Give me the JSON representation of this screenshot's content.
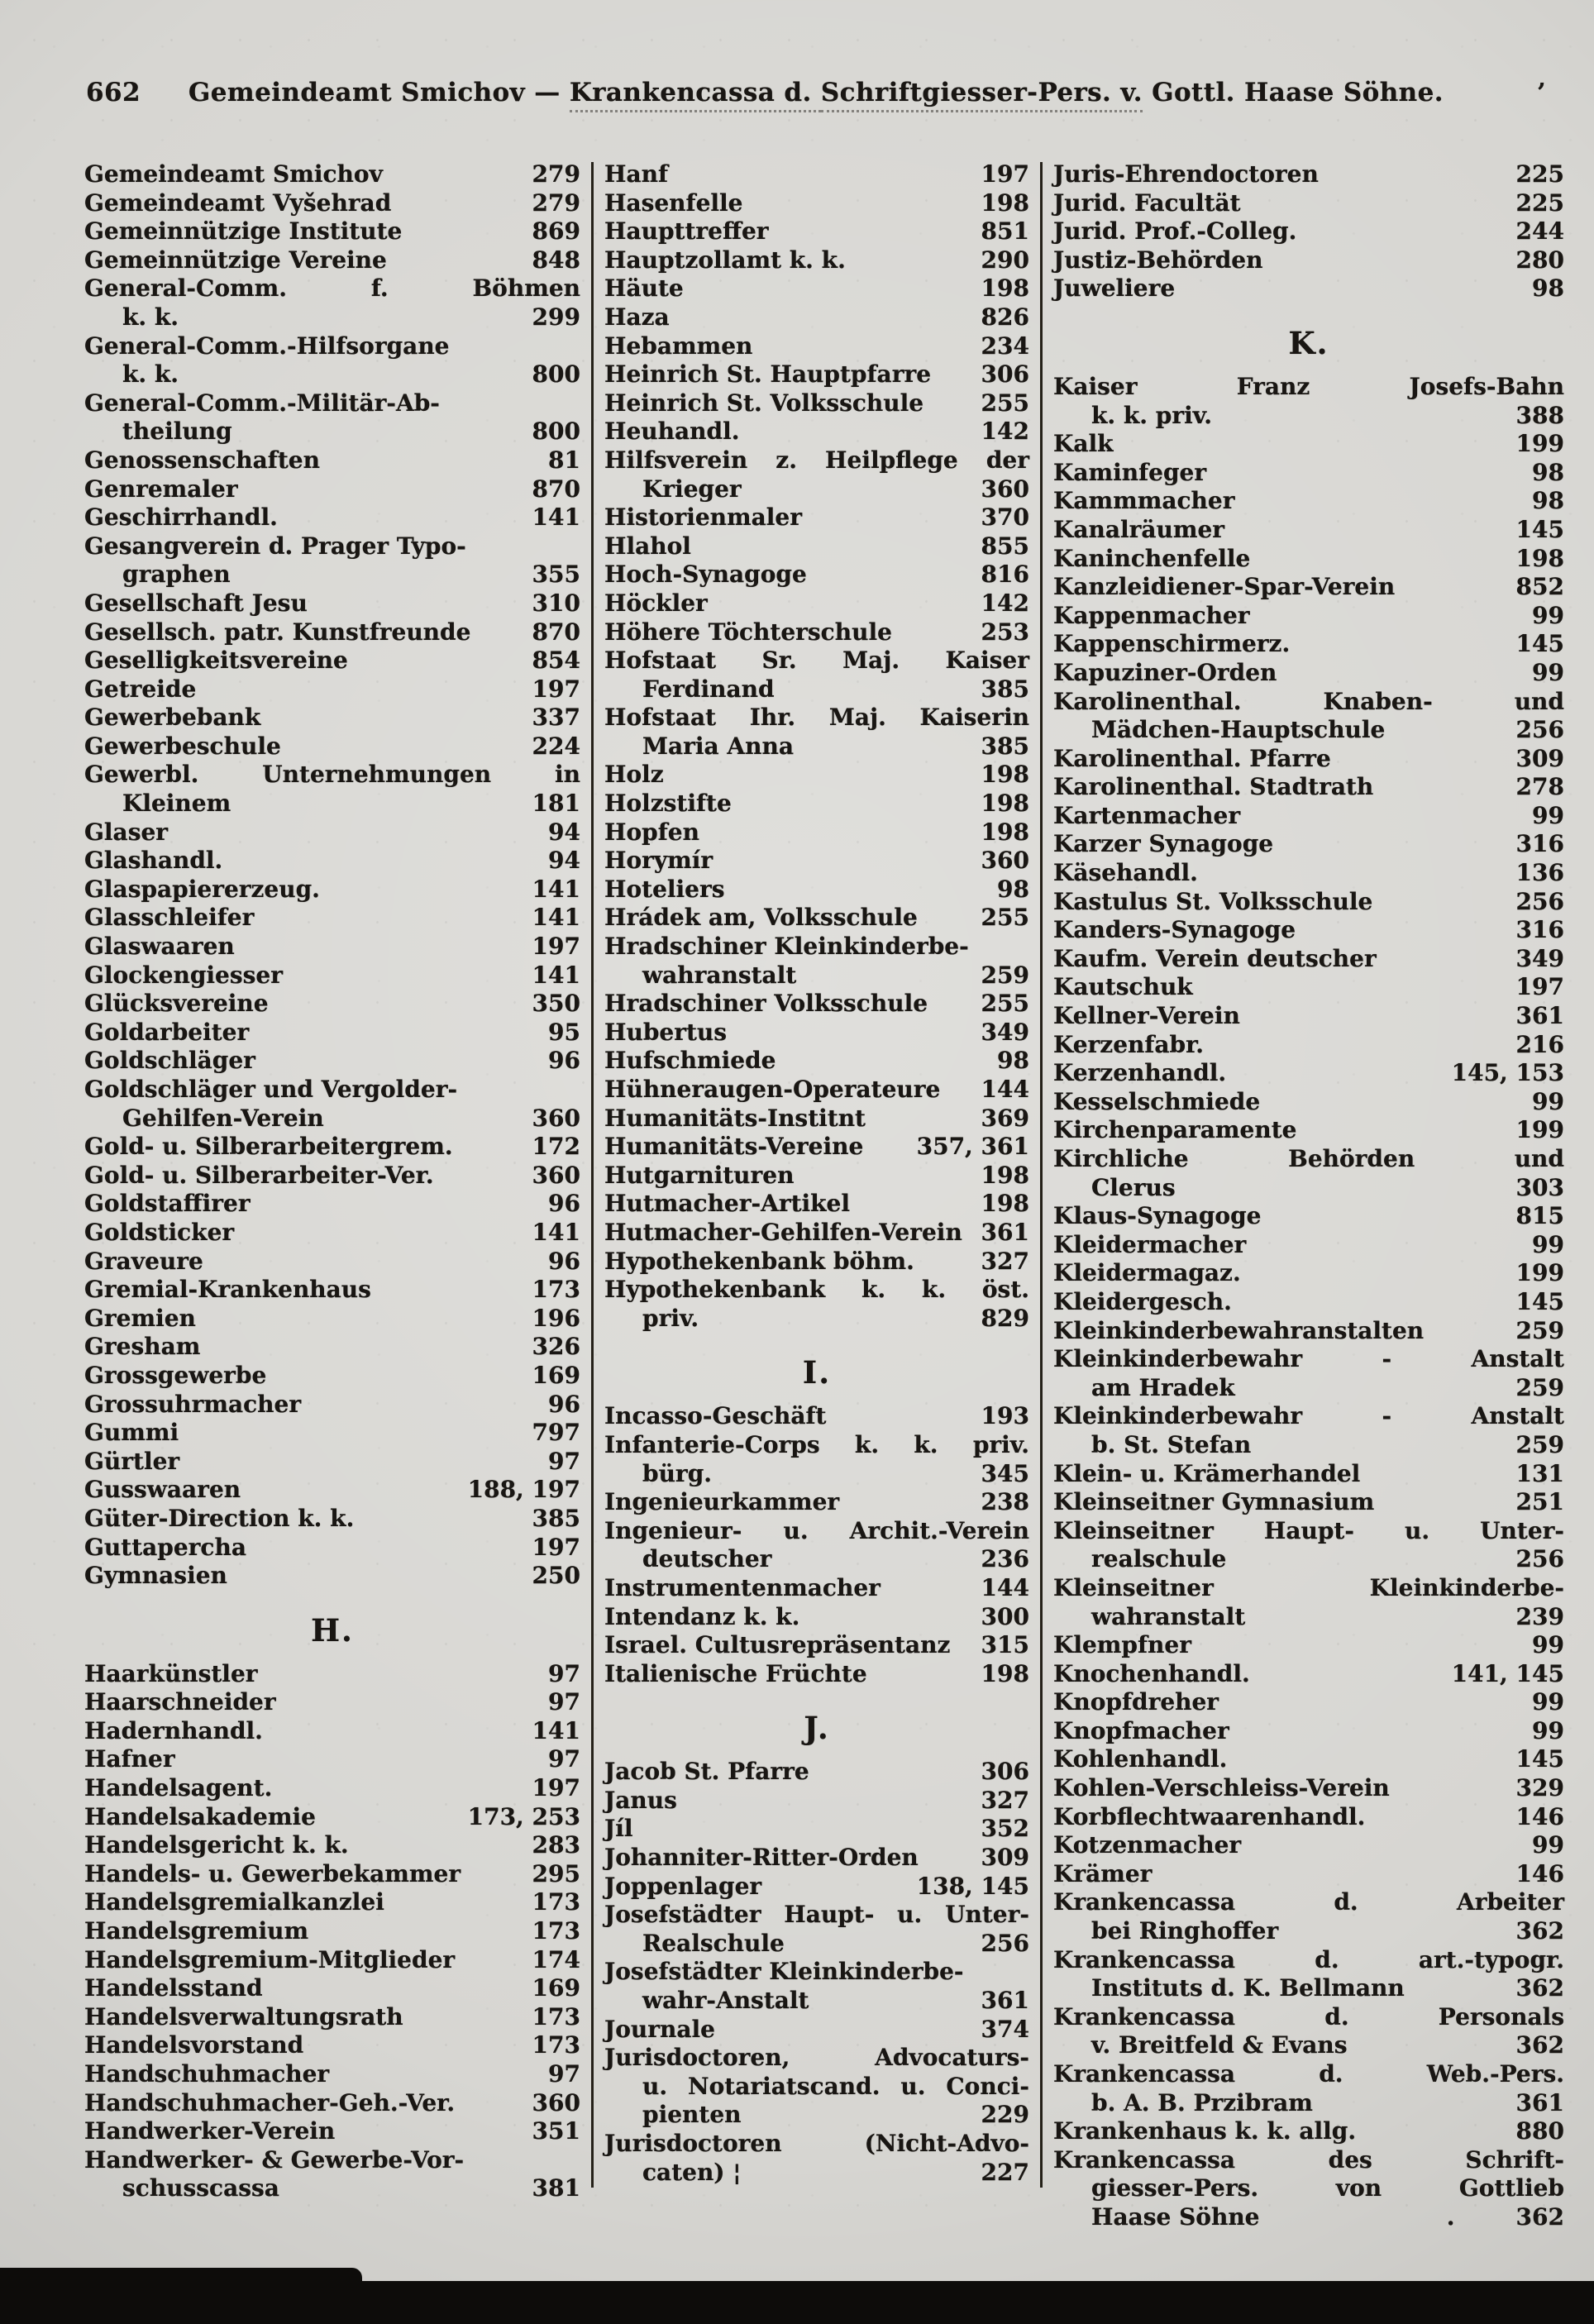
{
  "header": {
    "page_number": "662",
    "part1": "Gemeindeamt Smichov — ",
    "part2": "Krankencassa d. ",
    "part3": "Schriftgiesser-Pers. v.",
    "part4": " Gottl. Haase Söhne.",
    "right_mark": "’"
  },
  "columns": [
    {
      "rows": [
        {
          "l": "Gemeindeamt Smichov",
          "n": "279"
        },
        {
          "l": "Gemeindeamt Vyšehrad",
          "n": "279"
        },
        {
          "l": "Gemeinnützige Institute",
          "n": "869"
        },
        {
          "l": "Gemeinnützige Vereine",
          "n": "848"
        },
        {
          "l": "General-Comm. f. Böhmen",
          "j": 1
        },
        {
          "l": "k. k.",
          "n": "299",
          "i": 1
        },
        {
          "l": "General-Comm.-Hilfsorgane"
        },
        {
          "l": "k. k.",
          "n": "800",
          "i": 1
        },
        {
          "l": "General-Comm.-Militär-Ab-"
        },
        {
          "l": "theilung",
          "n": "800",
          "i": 1
        },
        {
          "l": "Genossenschaften",
          "n": "81"
        },
        {
          "l": "Genremaler",
          "n": "870"
        },
        {
          "l": "Geschirrhandl.",
          "n": "141"
        },
        {
          "l": "Gesangverein d. Prager Typo-"
        },
        {
          "l": "graphen",
          "n": "355",
          "i": 1
        },
        {
          "l": "Gesellschaft Jesu",
          "n": "310"
        },
        {
          "l": "Gesellsch. patr. Kunstfreunde",
          "n": "870"
        },
        {
          "l": "Geselligkeitsvereine",
          "n": "854"
        },
        {
          "l": "Getreide",
          "n": "197"
        },
        {
          "l": "Gewerbebank",
          "n": "337"
        },
        {
          "l": "Gewerbeschule",
          "n": "224"
        },
        {
          "l": "Gewerbl. Unternehmungen in",
          "j": 1
        },
        {
          "l": "Kleinem",
          "n": "181",
          "i": 1
        },
        {
          "l": "Glaser",
          "n": "94"
        },
        {
          "l": "Glashandl.",
          "n": "94"
        },
        {
          "l": "Glaspapiererzeug.",
          "n": "141"
        },
        {
          "l": "Glasschleifer",
          "n": "141"
        },
        {
          "l": "Glaswaaren",
          "n": "197"
        },
        {
          "l": "Glockengiesser",
          "n": "141"
        },
        {
          "l": "Glücksvereine",
          "n": "350"
        },
        {
          "l": "Goldarbeiter",
          "n": "95"
        },
        {
          "l": "Goldschläger",
          "n": "96"
        },
        {
          "l": "Goldschläger und Vergolder-"
        },
        {
          "l": "Gehilfen-Verein",
          "n": "360",
          "i": 1
        },
        {
          "l": "Gold- u. Silberarbeitergrem.",
          "n": "172"
        },
        {
          "l": "Gold- u. Silberarbeiter-Ver.",
          "n": "360"
        },
        {
          "l": "Goldstaffirer",
          "n": "96"
        },
        {
          "l": "Goldsticker",
          "n": "141"
        },
        {
          "l": "Graveure",
          "n": "96"
        },
        {
          "l": "Gremial-Krankenhaus",
          "n": "173"
        },
        {
          "l": "Gremien",
          "n": "196"
        },
        {
          "l": "Gresham",
          "n": "326"
        },
        {
          "l": "Grossgewerbe",
          "n": "169"
        },
        {
          "l": "Grossuhrmacher",
          "n": "96"
        },
        {
          "l": "Gummi",
          "n": "797"
        },
        {
          "l": "Gürtler",
          "n": "97"
        },
        {
          "l": "Gusswaaren",
          "n": "188, 197"
        },
        {
          "l": "Güter-Direction k. k.",
          "n": "385"
        },
        {
          "l": "Guttapercha",
          "n": "197"
        },
        {
          "l": "Gymnasien",
          "n": "250"
        },
        {
          "h": "H."
        },
        {
          "l": "Haarkünstler",
          "n": "97"
        },
        {
          "l": "Haarschneider",
          "n": "97"
        },
        {
          "l": "Hadernhandl.",
          "n": "141"
        },
        {
          "l": "Hafner",
          "n": "97"
        },
        {
          "l": "Handelsagent.",
          "n": "197"
        },
        {
          "l": "Handelsakademie",
          "n": "173, 253"
        },
        {
          "l": "Handelsgericht k. k.",
          "n": "283"
        },
        {
          "l": "Handels- u. Gewerbekammer",
          "n": "295"
        },
        {
          "l": "Handelsgremialkanzlei",
          "n": "173"
        },
        {
          "l": "Handelsgremium",
          "n": "173"
        },
        {
          "l": "Handelsgremium-Mitglieder",
          "n": "174"
        },
        {
          "l": "Handelsstand",
          "n": "169"
        },
        {
          "l": "Handelsverwaltungsrath",
          "n": "173"
        },
        {
          "l": "Handelsvorstand",
          "n": "173"
        },
        {
          "l": "Handschuhmacher",
          "n": "97"
        },
        {
          "l": "Handschuhmacher-Geh.-Ver.",
          "n": "360"
        },
        {
          "l": "Handwerker-Verein",
          "n": "351"
        },
        {
          "l": "Handwerker- & Gewerbe-Vor-"
        },
        {
          "l": "schusscassa",
          "n": "381",
          "i": 1
        }
      ]
    },
    {
      "rows": [
        {
          "l": "Hanf",
          "n": "197"
        },
        {
          "l": "Hasenfelle",
          "n": "198"
        },
        {
          "l": "Haupttreffer",
          "n": "851"
        },
        {
          "l": "Hauptzollamt k. k.",
          "n": "290"
        },
        {
          "l": "Häute",
          "n": "198"
        },
        {
          "l": "Haza",
          "n": "826"
        },
        {
          "l": "Hebammen",
          "n": "234"
        },
        {
          "l": "Heinrich St. Hauptpfarre",
          "n": "306"
        },
        {
          "l": "Heinrich St. Volksschule",
          "n": "255"
        },
        {
          "l": "Heuhandl.",
          "n": "142"
        },
        {
          "l": "Hilfsverein z. Heilpflege der",
          "j": 1
        },
        {
          "l": "Krieger",
          "n": "360",
          "i": 1
        },
        {
          "l": "Historienmaler",
          "n": "370"
        },
        {
          "l": "Hlahol",
          "n": "855"
        },
        {
          "l": "Hoch-Synagoge",
          "n": "816"
        },
        {
          "l": "Höckler",
          "n": "142"
        },
        {
          "l": "Höhere Töchterschule",
          "n": "253"
        },
        {
          "l": "Hofstaat Sr. Maj. Kaiser",
          "j": 1
        },
        {
          "l": "Ferdinand",
          "n": "385",
          "i": 1
        },
        {
          "l": "Hofstaat Ihr. Maj. Kaiserin",
          "j": 1
        },
        {
          "l": "Maria Anna",
          "n": "385",
          "i": 1
        },
        {
          "l": "Holz",
          "n": "198"
        },
        {
          "l": "Holzstifte",
          "n": "198"
        },
        {
          "l": "Hopfen",
          "n": "198"
        },
        {
          "l": "Horymír",
          "n": "360"
        },
        {
          "l": "Hoteliers",
          "n": "98"
        },
        {
          "l": "Hrádek am, Volksschule",
          "n": "255"
        },
        {
          "l": "Hradschiner Kleinkinderbe-"
        },
        {
          "l": "wahranstalt",
          "n": "259",
          "i": 1
        },
        {
          "l": "Hradschiner Volksschule",
          "n": "255"
        },
        {
          "l": "Hubertus",
          "n": "349"
        },
        {
          "l": "Hufschmiede",
          "n": "98"
        },
        {
          "l": "Hühneraugen-Operateure",
          "n": "144"
        },
        {
          "l": "Humanitäts-Institnt",
          "n": "369"
        },
        {
          "l": "Humanitäts-Vereine",
          "n": "357, 361"
        },
        {
          "l": "Hutgarnituren",
          "n": "198"
        },
        {
          "l": "Hutmacher-Artikel",
          "n": "198"
        },
        {
          "l": "Hutmacher-Gehilfen-Verein",
          "n": "361"
        },
        {
          "l": "Hypothekenbank böhm.",
          "n": "327"
        },
        {
          "l": "Hypothekenbank k. k. öst.",
          "j": 1
        },
        {
          "l": "priv.",
          "n": "829",
          "i": 1
        },
        {
          "h": "I."
        },
        {
          "l": "Incasso-Geschäft",
          "n": "193"
        },
        {
          "l": "Infanterie-Corps k. k. priv.",
          "j": 1
        },
        {
          "l": "bürg.",
          "n": "345",
          "i": 1
        },
        {
          "l": "Ingenieurkammer",
          "n": "238"
        },
        {
          "l": "Ingenieur- u. Archit.-Verein",
          "j": 1
        },
        {
          "l": "deutscher",
          "n": "236",
          "i": 1
        },
        {
          "l": "Instrumentenmacher",
          "n": "144"
        },
        {
          "l": "Intendanz k. k.",
          "n": "300"
        },
        {
          "l": "Israel. Cultusrepräsentanz",
          "n": "315"
        },
        {
          "l": "Italienische Früchte",
          "n": "198"
        },
        {
          "h": "J."
        },
        {
          "l": "Jacob St. Pfarre",
          "n": "306"
        },
        {
          "l": "Janus",
          "n": "327"
        },
        {
          "l": "Jíl",
          "n": "352"
        },
        {
          "l": "Johanniter-Ritter-Orden",
          "n": "309"
        },
        {
          "l": "Joppenlager",
          "n": "138, 145"
        },
        {
          "l": "Josefstädter Haupt- u. Unter-",
          "j": 1
        },
        {
          "l": "Realschule",
          "n": "256",
          "i": 1
        },
        {
          "l": "Josefstädter Kleinkinderbe-"
        },
        {
          "l": "wahr-Anstalt",
          "n": "361",
          "i": 1
        },
        {
          "l": "Journale",
          "n": "374"
        },
        {
          "l": "Jurisdoctoren, Advocaturs-",
          "j": 1
        },
        {
          "l": "u. Notariatscand. u. Conci-",
          "i": 1,
          "j": 1
        },
        {
          "l": "pienten",
          "n": "229",
          "i": 1
        },
        {
          "l": "Jurisdoctoren (Nicht-Advo-",
          "j": 1
        },
        {
          "l": "caten) ¦",
          "n": "227",
          "i": 1
        }
      ]
    },
    {
      "rows": [
        {
          "l": "Juris-Ehrendoctoren",
          "n": "225"
        },
        {
          "l": "Jurid. Facultät",
          "n": "225"
        },
        {
          "l": "Jurid. Prof.-Colleg.",
          "n": "244"
        },
        {
          "l": "Justiz-Behörden",
          "n": "280"
        },
        {
          "l": "Juweliere",
          "n": "98"
        },
        {
          "h": "K."
        },
        {
          "l": "Kaiser Franz Josefs-Bahn",
          "j": 1
        },
        {
          "l": "k. k. priv.",
          "n": "388",
          "i": 1
        },
        {
          "l": "Kalk",
          "n": "199"
        },
        {
          "l": "Kaminfeger",
          "n": "98"
        },
        {
          "l": "Kammmacher",
          "n": "98"
        },
        {
          "l": "Kanalräumer",
          "n": "145"
        },
        {
          "l": "Kaninchenfelle",
          "n": "198"
        },
        {
          "l": "Kanzleidiener-Spar-Verein",
          "n": "852"
        },
        {
          "l": "Kappenmacher",
          "n": "99"
        },
        {
          "l": "Kappenschirmerz.",
          "n": "145"
        },
        {
          "l": "Kapuziner-Orden",
          "n": "99"
        },
        {
          "l": "Karolinenthal. Knaben- und",
          "j": 1
        },
        {
          "l": "Mädchen-Hauptschule",
          "n": "256",
          "i": 1
        },
        {
          "l": "Karolinenthal. Pfarre",
          "n": "309"
        },
        {
          "l": "Karolinenthal. Stadtrath",
          "n": "278"
        },
        {
          "l": "Kartenmacher",
          "n": "99"
        },
        {
          "l": "Karzer Synagoge",
          "n": "316"
        },
        {
          "l": "Käsehandl.",
          "n": "136"
        },
        {
          "l": "Kastulus St. Volksschule",
          "n": "256"
        },
        {
          "l": "Kanders-Synagoge",
          "n": "316"
        },
        {
          "l": "Kaufm. Verein deutscher",
          "n": "349"
        },
        {
          "l": "Kautschuk",
          "n": "197"
        },
        {
          "l": "Kellner-Verein",
          "n": "361"
        },
        {
          "l": "Kerzenfabr.",
          "n": "216"
        },
        {
          "l": "Kerzenhandl.",
          "n": "145, 153"
        },
        {
          "l": "Kesselschmiede",
          "n": "99"
        },
        {
          "l": "Kirchenparamente",
          "n": "199"
        },
        {
          "l": "Kirchliche Behörden und",
          "j": 1
        },
        {
          "l": "Clerus",
          "n": "303",
          "i": 1
        },
        {
          "l": "Klaus-Synagoge",
          "n": "815"
        },
        {
          "l": "Kleidermacher",
          "n": "99"
        },
        {
          "l": "Kleidermagaz.",
          "n": "199"
        },
        {
          "l": "Kleidergesch.",
          "n": "145"
        },
        {
          "l": "Kleinkinderbewahranstalten",
          "n": "259"
        },
        {
          "l": "Kleinkinderbewahr - Anstalt",
          "j": 1
        },
        {
          "l": "am Hradek",
          "n": "259",
          "i": 1
        },
        {
          "l": "Kleinkinderbewahr - Anstalt",
          "j": 1
        },
        {
          "l": "b. St. Stefan",
          "n": "259",
          "i": 1
        },
        {
          "l": "Klein- u. Krämerhandel",
          "n": "131"
        },
        {
          "l": "Kleinseitner Gymnasium",
          "n": "251"
        },
        {
          "l": "Kleinseitner Haupt- u. Unter-",
          "j": 1
        },
        {
          "l": "realschule",
          "n": "256",
          "i": 1
        },
        {
          "l": "Kleinseitner Kleinkinderbe-",
          "j": 1
        },
        {
          "l": "wahranstalt",
          "n": "239",
          "i": 1
        },
        {
          "l": "Klempfner",
          "n": "99"
        },
        {
          "l": "Knochenhandl.",
          "n": "141, 145"
        },
        {
          "l": "Knopfdreher",
          "n": "99"
        },
        {
          "l": "Knopfmacher",
          "n": "99"
        },
        {
          "l": "Kohlenhandl.",
          "n": "145"
        },
        {
          "l": "Kohlen-Verschleiss-Verein",
          "n": "329"
        },
        {
          "l": "Korbflechtwaarenhandl.",
          "n": "146"
        },
        {
          "l": "Kotzenmacher",
          "n": "99"
        },
        {
          "l": "Krämer",
          "n": "146"
        },
        {
          "l": "Krankencassa d. Arbeiter",
          "j": 1
        },
        {
          "l": "bei Ringhoffer",
          "n": "362",
          "i": 1
        },
        {
          "l": "Krankencassa d. art.-typogr.",
          "j": 1
        },
        {
          "l": "Instituts d. K. Bellmann",
          "n": "362",
          "i": 1
        },
        {
          "l": "Krankencassa d. Personals",
          "j": 1
        },
        {
          "l": "v. Breitfeld & Evans",
          "n": "362",
          "i": 1
        },
        {
          "l": "Krankencassa d. Web.-Pers.",
          "j": 1
        },
        {
          "l": "b. A. B. Przibram",
          "n": "361",
          "i": 1
        },
        {
          "l": "Krankenhaus k. k. allg.",
          "n": "880"
        },
        {
          "l": "Krankencassa des Schrift-",
          "j": 1
        },
        {
          "l": "giesser-Pers. von Gottlieb",
          "i": 1,
          "j": 1
        },
        {
          "l": "Haase Söhne",
          "p": ".",
          "n": "362",
          "i": 1
        }
      ]
    }
  ]
}
